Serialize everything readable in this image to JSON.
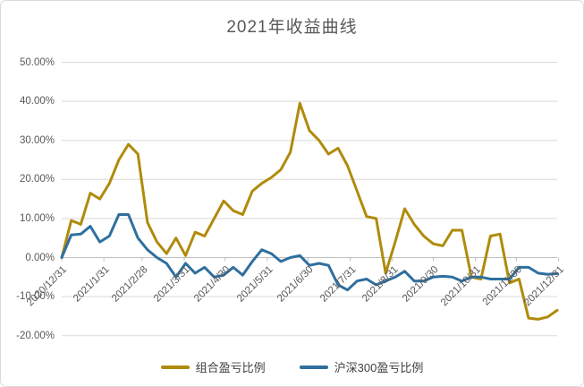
{
  "chart_data": {
    "type": "line",
    "title": "2021年收益曲线",
    "y_ticks": [
      "50.00%",
      "40.00%",
      "30.00%",
      "20.00%",
      "10.00%",
      "0.00%",
      "-10.00%",
      "-20.00%"
    ],
    "ylim": [
      -20,
      50
    ],
    "grid": "horizontal",
    "legend_position": "bottom",
    "x_tick_labels": [
      "2020/12/31",
      "2021/1/31",
      "2021/2/28",
      "2021/3/31",
      "2021/4/30",
      "2021/5/31",
      "2021/6/30",
      "2021/7/31",
      "2021/8/31",
      "2021/9/30",
      "2021/10/31",
      "2021/11/30",
      "2021/12/31"
    ],
    "x_unit": "weekly points from 2020/12/31 to 2021/12/31",
    "series": [
      {
        "name": "组合盈亏比例",
        "color": "#b08b0b",
        "values": [
          0,
          9.5,
          8.5,
          16.5,
          15,
          19,
          25,
          29,
          26.5,
          9,
          4,
          1,
          5,
          0.5,
          6.5,
          5.5,
          10,
          14.5,
          12,
          11,
          17,
          19,
          20.5,
          22.5,
          27,
          39.5,
          32.5,
          30,
          26.5,
          28,
          23.5,
          17,
          10.5,
          10,
          -4,
          4,
          12.5,
          8.5,
          5.5,
          3.5,
          3,
          7,
          7,
          -5,
          -5.5,
          5.5,
          6,
          -6.5,
          -5.5,
          -15.5,
          -15.8,
          -15.2,
          -13.5
        ]
      },
      {
        "name": "沪深300盈亏比例",
        "color": "#2e6f9f",
        "values": [
          0,
          5.8,
          6,
          8,
          4,
          5.5,
          11,
          11,
          5,
          2,
          0,
          -1.5,
          -5,
          -1.5,
          -4,
          -2.5,
          -5,
          -4.5,
          -2.5,
          -4.5,
          -1,
          2,
          1,
          -1,
          0,
          0.5,
          -2,
          -1.5,
          -2,
          -7,
          -8.3,
          -6,
          -5.5,
          -7,
          -6,
          -5,
          -3.5,
          -6,
          -6,
          -5,
          -4.8,
          -5,
          -6,
          -5,
          -5,
          -5.5,
          -5.5,
          -5.5,
          -2.5,
          -2.5,
          -4,
          -4.3,
          -4.1
        ]
      }
    ],
    "colors": {
      "grid": "#d9d9d9",
      "axis": "#bfbfbf",
      "tick_text": "#595959",
      "title_text": "#595959",
      "legend_text": "#404040",
      "background": "#ffffff"
    }
  }
}
